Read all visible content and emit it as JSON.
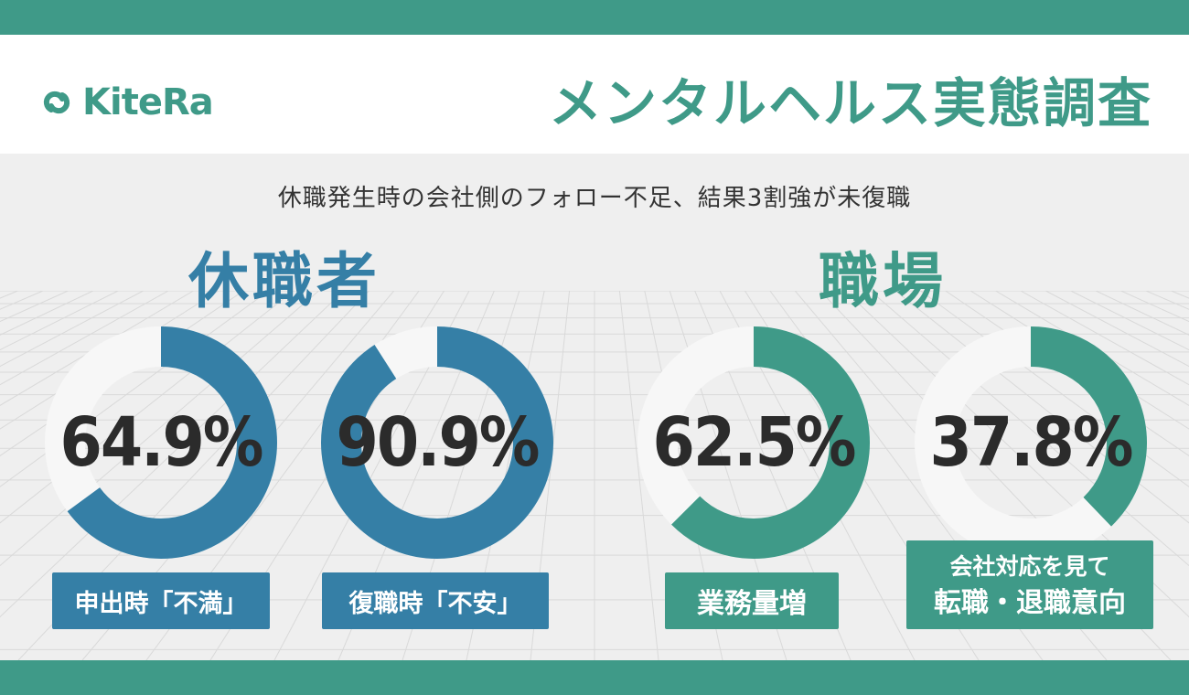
{
  "brand": {
    "logo_text": "KiteRa"
  },
  "header": {
    "title": "メンタルヘルス実態調査"
  },
  "subtitle": "休職発生時の会社側のフォロー不足、結果3割強が未復職",
  "groups": {
    "left": {
      "title": "休職者",
      "color": "#357fa6"
    },
    "right": {
      "title": "職場",
      "color": "#3f9a88"
    }
  },
  "chart_data": [
    {
      "type": "pie",
      "group": "休職者",
      "value": 64.9,
      "value_label": "64.9%",
      "category": "申出時「不満」",
      "color": "#357fa6",
      "rest_color": "#f7f7f7"
    },
    {
      "type": "pie",
      "group": "休職者",
      "value": 90.9,
      "value_label": "90.9%",
      "category": "復職時「不安」",
      "color": "#357fa6",
      "rest_color": "#f7f7f7"
    },
    {
      "type": "pie",
      "group": "職場",
      "value": 62.5,
      "value_label": "62.5%",
      "category": "業務量増",
      "color": "#3f9a88",
      "rest_color": "#f7f7f7"
    },
    {
      "type": "pie",
      "group": "職場",
      "value": 37.8,
      "value_label": "37.8%",
      "category_lines": [
        "会社対応を見て",
        "転職・退職意向"
      ],
      "color": "#3f9a88",
      "rest_color": "#f7f7f7"
    }
  ]
}
